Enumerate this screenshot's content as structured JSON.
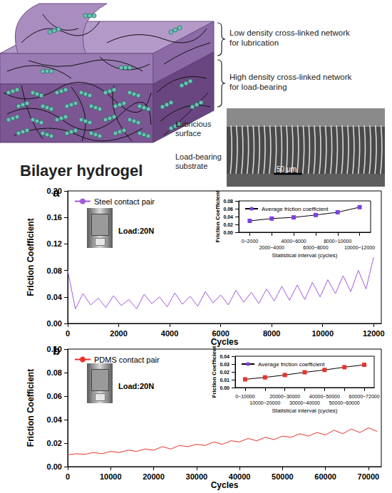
{
  "diagram": {
    "title": "Bilayer hydrogel",
    "layers": [
      {
        "label": [
          "Low density cross-linked network",
          "for lubrication"
        ]
      },
      {
        "label": [
          "High density cross-linked network",
          "for load-bearing"
        ]
      }
    ],
    "micrograph": {
      "labels": [
        [
          "Lubricious",
          "surface"
        ],
        [
          "Load-bearing",
          "substrate"
        ]
      ],
      "scale_bar": "50 μm"
    }
  },
  "chart_data": [
    {
      "type": "line",
      "panel_label": "a",
      "x": [
        0,
        300,
        600,
        900,
        1200,
        1500,
        1800,
        2100,
        2400,
        2700,
        3000,
        3300,
        3600,
        3900,
        4200,
        4500,
        4800,
        5100,
        5400,
        5700,
        6000,
        6300,
        6600,
        6900,
        7200,
        7500,
        7800,
        8100,
        8400,
        8700,
        9000,
        9300,
        9600,
        9900,
        10200,
        10500,
        10800,
        11100,
        11400,
        11700,
        12000
      ],
      "series": [
        {
          "name": "Steel contact pair",
          "color": "#a05ad8",
          "values": [
            0.08,
            0.022,
            0.045,
            0.028,
            0.038,
            0.024,
            0.042,
            0.027,
            0.036,
            0.022,
            0.044,
            0.03,
            0.04,
            0.025,
            0.046,
            0.029,
            0.041,
            0.026,
            0.048,
            0.031,
            0.043,
            0.028,
            0.05,
            0.032,
            0.047,
            0.03,
            0.052,
            0.034,
            0.056,
            0.035,
            0.058,
            0.036,
            0.062,
            0.04,
            0.066,
            0.045,
            0.072,
            0.048,
            0.08,
            0.052,
            0.1
          ]
        }
      ],
      "xlabel": "Cycles",
      "ylabel": "Friction Coefficient",
      "xlim": [
        0,
        12300
      ],
      "xticks": [
        0,
        2000,
        4000,
        6000,
        8000,
        10000,
        12000
      ],
      "ylim": [
        0,
        0.2
      ],
      "yticks": [
        {
          "value": 0,
          "label": "0.00"
        },
        0.04,
        0.08,
        0.12,
        0.16,
        {
          "value": 0.2,
          "label": "0.20"
        }
      ],
      "annotations": [
        "Load:20N"
      ],
      "legend": "upper left",
      "grid": false,
      "inset": {
        "type": "line",
        "categories": [
          "0~2000",
          "2000~4000",
          "4000~6000",
          "6000~8000",
          "8000~10000",
          "10000~12000"
        ],
        "series": [
          {
            "name": "Average friction coefficient",
            "color": "#7f3fe0",
            "marker": "square",
            "values": [
              0.029,
              0.035,
              0.038,
              0.044,
              0.051,
              0.064
            ]
          }
        ],
        "xlabel": "Statistical interval (cycles)",
        "ylabel": "Friction Coefficient",
        "ylim": [
          0,
          0.08
        ],
        "yticks": [
          {
            "value": 0,
            "label": "0.00"
          },
          0.02,
          0.04,
          0.06,
          0.08
        ],
        "legend": "upper left",
        "grid": false
      }
    },
    {
      "type": "line",
      "panel_label": "b",
      "x": [
        0,
        2000,
        4000,
        6000,
        8000,
        10000,
        12000,
        14000,
        16000,
        18000,
        20000,
        22000,
        24000,
        26000,
        28000,
        30000,
        32000,
        34000,
        36000,
        38000,
        40000,
        42000,
        44000,
        46000,
        48000,
        50000,
        52000,
        54000,
        56000,
        58000,
        60000,
        62000,
        64000,
        66000,
        68000,
        70000,
        72000
      ],
      "series": [
        {
          "name": "PDMS contact pair",
          "color": "#e8332b",
          "values": [
            0.01,
            0.011,
            0.0105,
            0.012,
            0.011,
            0.013,
            0.012,
            0.014,
            0.013,
            0.015,
            0.014,
            0.017,
            0.015,
            0.018,
            0.017,
            0.019,
            0.018,
            0.021,
            0.019,
            0.022,
            0.021,
            0.024,
            0.022,
            0.025,
            0.023,
            0.026,
            0.025,
            0.028,
            0.026,
            0.029,
            0.027,
            0.031,
            0.028,
            0.032,
            0.029,
            0.033,
            0.03
          ]
        }
      ],
      "xlabel": "Cycles",
      "ylabel": "Friction Coefficient",
      "xlim": [
        0,
        73000
      ],
      "xticks": [
        0,
        10000,
        20000,
        30000,
        40000,
        50000,
        60000,
        70000
      ],
      "ylim": [
        0,
        0.1
      ],
      "yticks": [
        {
          "value": 0,
          "label": "0.00"
        },
        0.02,
        0.04,
        0.06,
        0.08,
        {
          "value": 0.1,
          "label": "0.10"
        }
      ],
      "annotations": [
        "Load:20N"
      ],
      "legend": "upper left",
      "grid": false,
      "inset": {
        "type": "line",
        "categories": [
          "0~10000",
          "10000~20000",
          "20000~30000",
          "30000~40000",
          "40000~50000",
          "50000~60000",
          "60000~72000"
        ],
        "series": [
          {
            "name": "Average friction coefficient",
            "color": "#e8332b",
            "marker": "square",
            "values": [
              0.0105,
              0.013,
              0.016,
              0.0195,
              0.0225,
              0.026,
              0.029
            ]
          }
        ],
        "xlabel": "Statistical interval (cycles)",
        "ylabel": "Friction Coefficient",
        "ylim": [
          0,
          0.04
        ],
        "yticks": [
          {
            "value": 0,
            "label": "0.00"
          },
          0.01,
          0.02,
          0.03,
          0.04
        ],
        "legend": "upper left",
        "grid": false
      }
    }
  ]
}
